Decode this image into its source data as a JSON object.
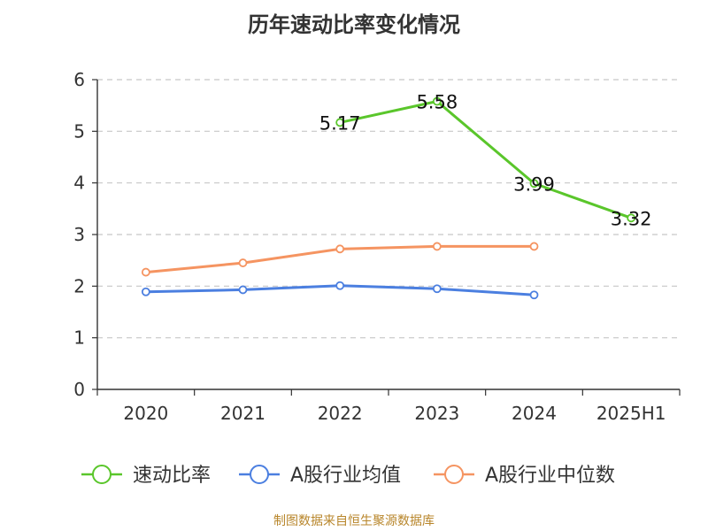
{
  "chart_data": {
    "type": "line",
    "title": "历年速动比率变化情况",
    "categories": [
      "2020",
      "2021",
      "2022",
      "2023",
      "2024",
      "2025H1"
    ],
    "ylim": [
      0,
      6
    ],
    "yticks": [
      "0",
      "1",
      "2",
      "3",
      "4",
      "5",
      "6"
    ],
    "grid": true,
    "legend_position": "bottom",
    "series": [
      {
        "name": "速动比率",
        "color": "#5ac62b",
        "values": [
          null,
          null,
          5.17,
          5.58,
          3.99,
          3.32
        ],
        "labels": [
          null,
          null,
          "5.17",
          "5.58",
          "3.99",
          "3.32"
        ]
      },
      {
        "name": "A股行业均值",
        "color": "#4b7fe0",
        "values": [
          1.89,
          1.93,
          2.01,
          1.95,
          1.83,
          null
        ]
      },
      {
        "name": "A股行业中位数",
        "color": "#f59461",
        "values": [
          2.27,
          2.45,
          2.72,
          2.77,
          2.77,
          null
        ]
      }
    ]
  },
  "footer": {
    "source": "制图数据来自恒生聚源数据库"
  }
}
